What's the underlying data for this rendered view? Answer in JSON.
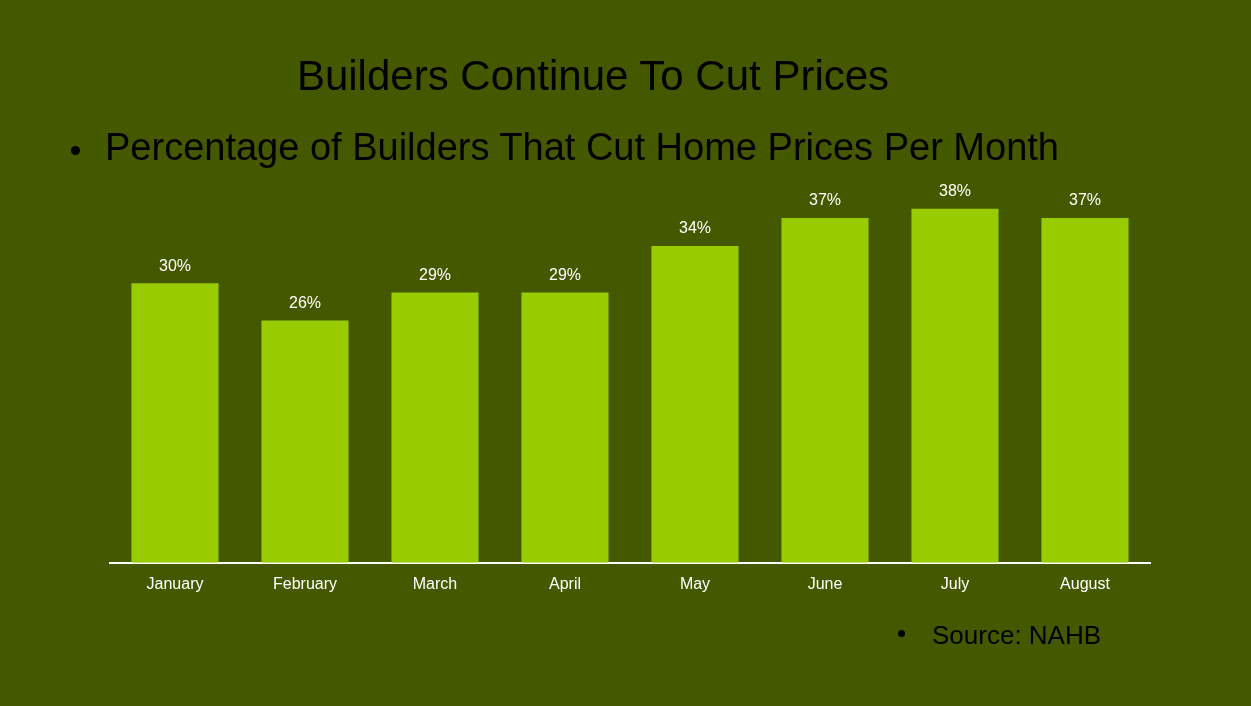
{
  "chart_data": {
    "type": "bar",
    "title": "Builders Continue To Cut Prices",
    "subtitle": "Percentage of Builders That Cut Home Prices Per Month",
    "categories": [
      "January",
      "February",
      "March",
      "April",
      "May",
      "June",
      "July",
      "August"
    ],
    "values": [
      30,
      26,
      29,
      29,
      34,
      37,
      38,
      37
    ],
    "value_labels": [
      "30%",
      "26%",
      "29%",
      "29%",
      "34%",
      "37%",
      "38%",
      "37%"
    ],
    "color": "#99cc00",
    "grid": false,
    "legend": false,
    "tick_labels": "x",
    "annotations": [
      "Source: NAHB"
    ]
  }
}
